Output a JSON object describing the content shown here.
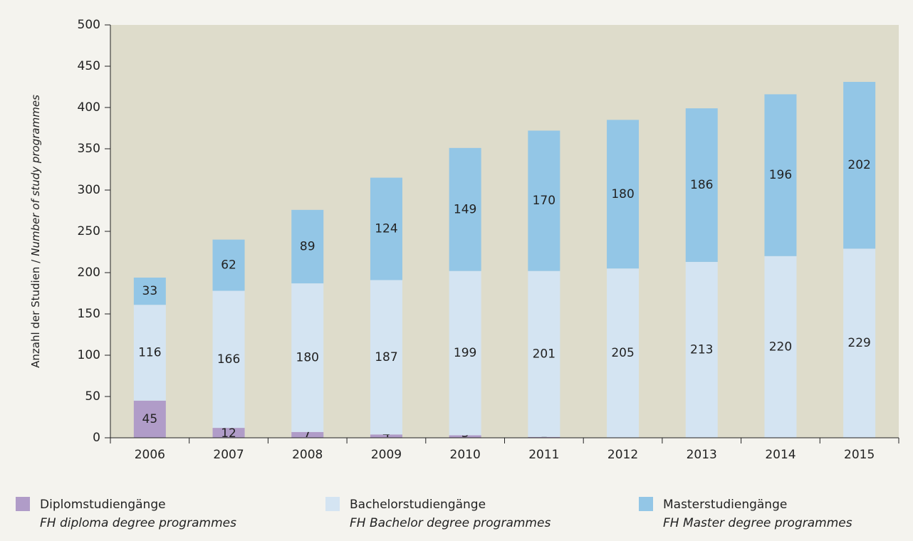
{
  "chart_data": {
    "type": "stacked_bar",
    "ylabel": [
      "Anzahl der Studien /",
      "Number of study programmes"
    ],
    "categories": [
      "2006",
      "2007",
      "2008",
      "2009",
      "2010",
      "2011",
      "2012",
      "2013",
      "2014",
      "2015"
    ],
    "series": [
      {
        "name": "Diplomstudiengänge",
        "name_en": "FH diploma degree programmes",
        "color": "#b09cc8",
        "values": [
          45,
          12,
          7,
          4,
          3,
          1,
          null,
          null,
          null,
          null
        ]
      },
      {
        "name": "Bachelorstudiengänge",
        "name_en": "FH Bachelor degree programmes",
        "color": "#d4e4f2",
        "values": [
          116,
          166,
          180,
          187,
          199,
          201,
          205,
          213,
          220,
          229
        ]
      },
      {
        "name": "Masterstudiengänge",
        "name_en": "FH Master degree programmes",
        "color": "#93c6e6",
        "values": [
          33,
          62,
          89,
          124,
          149,
          170,
          180,
          186,
          196,
          202
        ]
      }
    ],
    "ylim": [
      0,
      500
    ],
    "yticks": [
      0,
      50,
      100,
      150,
      200,
      250,
      300,
      350,
      400,
      450,
      500
    ],
    "plot_background": "#dedccb"
  }
}
